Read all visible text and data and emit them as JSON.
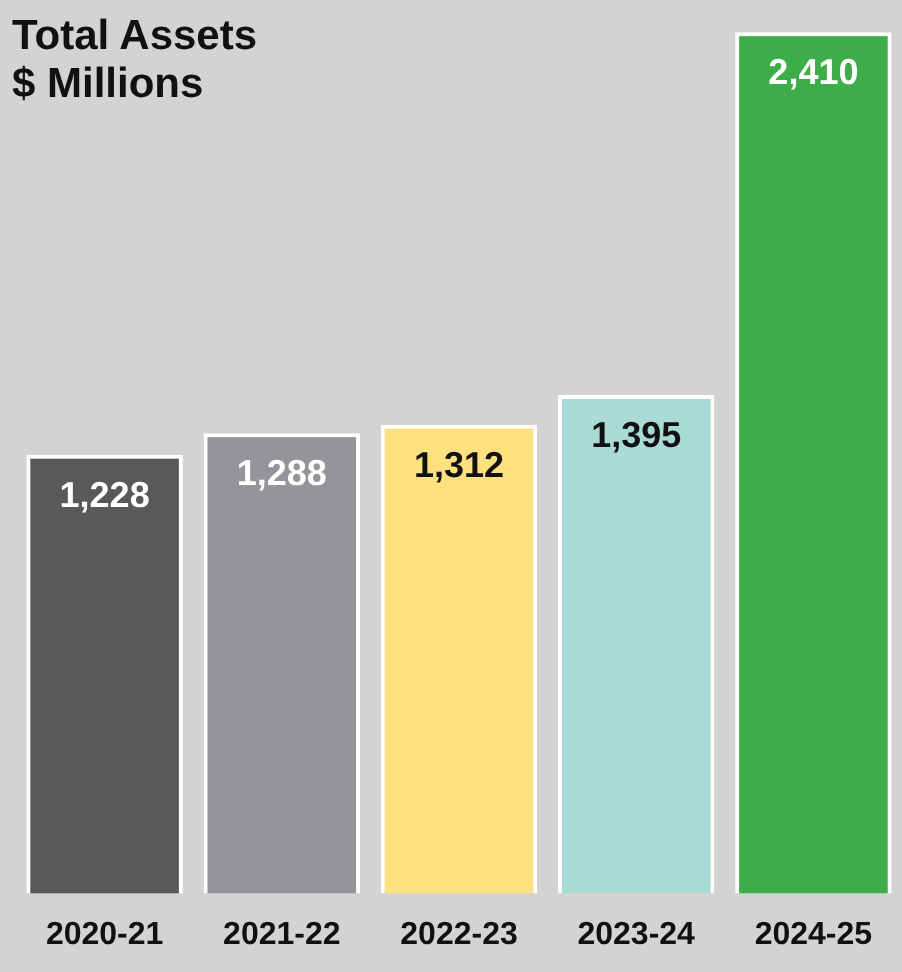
{
  "chart_data": {
    "type": "bar",
    "title": "Total Assets\n$ Millions",
    "categories": [
      "2020-21",
      "2021-22",
      "2022-23",
      "2023-24",
      "2024-25"
    ],
    "values": [
      1228,
      1288,
      1312,
      1395,
      2410
    ],
    "colors": [
      "#58595b",
      "#939598",
      "#fee07e",
      "#a9dad3",
      "#3dad4a"
    ],
    "value_labels": [
      "1,228",
      "1,288",
      "1,312",
      "1,395",
      "2,410"
    ],
    "grid": false,
    "legend": false,
    "tick_labels": "x"
  }
}
